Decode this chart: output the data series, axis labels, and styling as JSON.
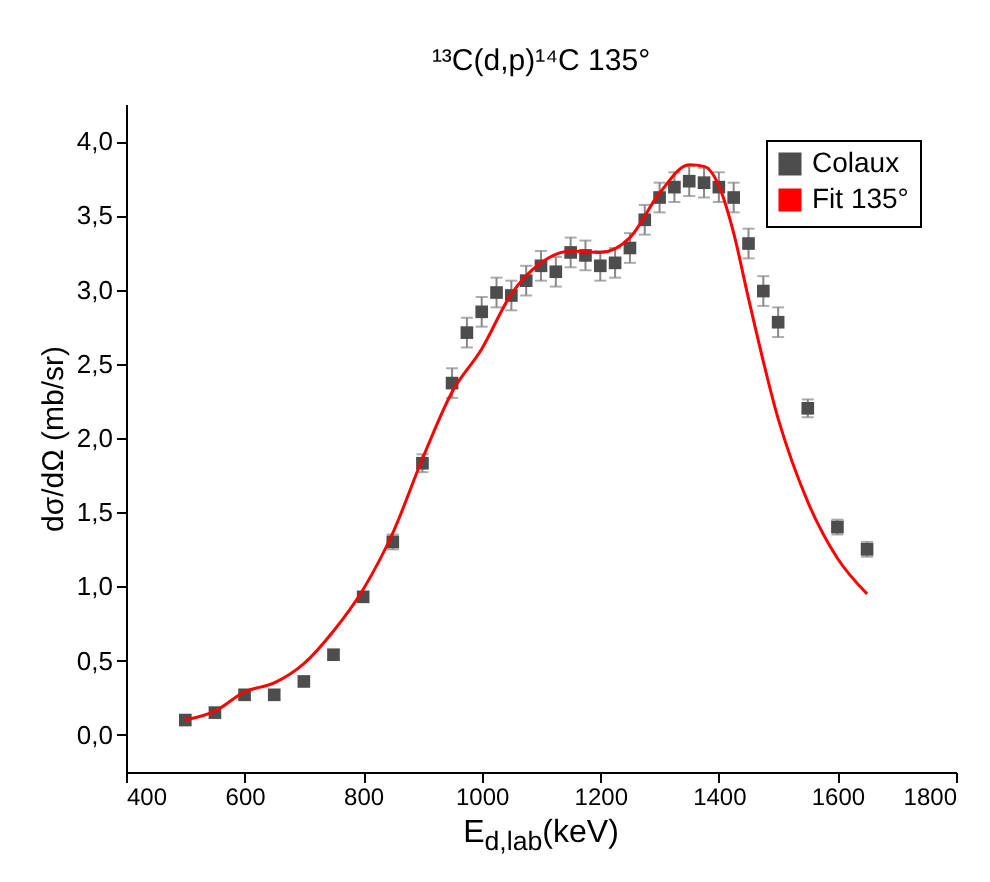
{
  "chart_data": {
    "type": "scatter",
    "title": "¹³C(d,p)¹⁴C 135°",
    "xlabel": "E$_{d,lab}$(keV)",
    "ylabel": "dσ/dΩ (mb/sr)",
    "xlim": [
      400,
      1800
    ],
    "ylim": [
      -0.25,
      4.25
    ],
    "xticks": [
      400,
      600,
      800,
      1000,
      1200,
      1400,
      1600,
      1800
    ],
    "yticks": [
      {
        "value": 0,
        "label": "0,0"
      },
      {
        "value": 0.5,
        "label": "0,5"
      },
      {
        "value": 1,
        "label": "1,0"
      },
      {
        "value": 1.5,
        "label": "1,5"
      },
      {
        "value": 2,
        "label": "2,0"
      },
      {
        "value": 2.5,
        "label": "2,5"
      },
      {
        "value": 3,
        "label": "3,0"
      },
      {
        "value": 3.5,
        "label": "3,5"
      },
      {
        "value": 4,
        "label": "4,0"
      }
    ],
    "legend": "top right",
    "grid": false,
    "series": [
      {
        "name": "Colaux",
        "marker": "square",
        "color": "#4d4d4d",
        "x": [
          500,
          550,
          600,
          650,
          700,
          750,
          800,
          850,
          900,
          950,
          975,
          1000,
          1025,
          1050,
          1075,
          1100,
          1125,
          1150,
          1175,
          1200,
          1225,
          1250,
          1275,
          1300,
          1325,
          1350,
          1375,
          1400,
          1425,
          1450,
          1475,
          1500,
          1550,
          1600,
          1650
        ],
        "values": [
          0.1,
          0.15,
          0.27,
          0.27,
          0.36,
          0.54,
          0.93,
          1.3,
          1.83,
          2.37,
          2.71,
          2.85,
          2.98,
          2.96,
          3.06,
          3.16,
          3.12,
          3.25,
          3.23,
          3.16,
          3.18,
          3.28,
          3.47,
          3.62,
          3.69,
          3.73,
          3.72,
          3.69,
          3.62,
          3.31,
          2.99,
          2.78,
          2.2,
          1.4,
          1.25
        ],
        "errors": [
          0.03,
          0.03,
          0.03,
          0.03,
          0.03,
          0.03,
          0.03,
          0.05,
          0.06,
          0.1,
          0.1,
          0.1,
          0.1,
          0.1,
          0.1,
          0.1,
          0.1,
          0.1,
          0.1,
          0.1,
          0.1,
          0.1,
          0.1,
          0.1,
          0.1,
          0.1,
          0.1,
          0.1,
          0.1,
          0.1,
          0.1,
          0.1,
          0.06,
          0.05,
          0.05
        ]
      },
      {
        "name": "Fit 135°",
        "type": "line",
        "marker": "none",
        "color": "#ff0000",
        "x": [
          500,
          550,
          600,
          650,
          700,
          750,
          800,
          850,
          900,
          950,
          1000,
          1050,
          1100,
          1150,
          1200,
          1250,
          1300,
          1350,
          1375,
          1400,
          1425,
          1450,
          1500,
          1550,
          1600,
          1650
        ],
        "values": [
          0.1,
          0.16,
          0.29,
          0.35,
          0.48,
          0.7,
          0.98,
          1.36,
          1.86,
          2.31,
          2.6,
          2.97,
          3.18,
          3.26,
          3.25,
          3.35,
          3.65,
          3.84,
          3.83,
          3.7,
          3.38,
          2.94,
          2.13,
          1.57,
          1.19,
          0.95
        ]
      }
    ]
  }
}
